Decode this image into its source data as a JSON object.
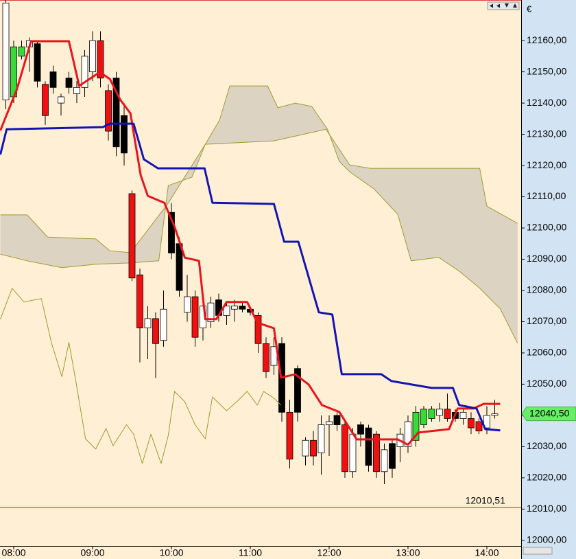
{
  "chart_data": {
    "type": "candlestick",
    "currency": "€",
    "xlim": [
      7.826,
      14.435
    ],
    "ylim": [
      11998.2,
      12173.0
    ],
    "xticks": [
      {
        "value": 8,
        "label": "08:00"
      },
      {
        "value": 9,
        "label": "09:00"
      },
      {
        "value": 10,
        "label": "10:00"
      },
      {
        "value": 11,
        "label": "11:00"
      },
      {
        "value": 12,
        "label": "12:00"
      },
      {
        "value": 13,
        "label": "13:00"
      },
      {
        "value": 14,
        "label": "14:00"
      }
    ],
    "yticks": [
      {
        "value": 12000,
        "label": "12000,00"
      },
      {
        "value": 12010,
        "label": "12010,00"
      },
      {
        "value": 12020,
        "label": "12020,00"
      },
      {
        "value": 12030,
        "label": "12030,00"
      },
      {
        "value": 12040,
        "label": "12040,00"
      },
      {
        "value": 12050,
        "label": "12050,00"
      },
      {
        "value": 12060,
        "label": "12060,00"
      },
      {
        "value": 12070,
        "label": "12070,00"
      },
      {
        "value": 12080,
        "label": "12080,00"
      },
      {
        "value": 12090,
        "label": "12090,00"
      },
      {
        "value": 12100,
        "label": "12100,00"
      },
      {
        "value": 12110,
        "label": "12110,00"
      },
      {
        "value": 12120,
        "label": "12120,00"
      },
      {
        "value": 12130,
        "label": "12130,00"
      },
      {
        "value": 12140,
        "label": "12140,00"
      },
      {
        "value": 12150,
        "label": "12150,00"
      },
      {
        "value": 12160,
        "label": "12160,00"
      }
    ],
    "candles": {
      "x": [
        7.9,
        8.0,
        8.1,
        8.2,
        8.3,
        8.4,
        8.5,
        8.6,
        8.7,
        8.8,
        8.9,
        9.0,
        9.1,
        9.2,
        9.3,
        9.4,
        9.5,
        9.6,
        9.7,
        9.8,
        9.9,
        10.0,
        10.1,
        10.2,
        10.3,
        10.4,
        10.5,
        10.6,
        10.7,
        10.8,
        10.9,
        11.0,
        11.1,
        11.2,
        11.3,
        11.4,
        11.5,
        11.6,
        11.7,
        11.8,
        11.9,
        12.0,
        12.1,
        12.2,
        12.3,
        12.4,
        12.5,
        12.6,
        12.7,
        12.8,
        12.9,
        13.0,
        13.1,
        13.2,
        13.3,
        13.4,
        13.5,
        13.6,
        13.7,
        13.8,
        13.9,
        14.0,
        14.1
      ],
      "open": [
        12141,
        12142,
        12155,
        12158,
        12159,
        12146,
        12150,
        12140,
        12148,
        12143,
        12145,
        12150,
        12160,
        12144,
        12148,
        12136,
        12111,
        12085,
        12068,
        12071,
        12064,
        12105,
        12095,
        12073,
        12078,
        12068,
        12070,
        12077,
        12072,
        12074,
        12075,
        12074,
        12072,
        12063,
        12056,
        12063,
        12041,
        12055,
        12027,
        12032,
        12028,
        12037,
        12040,
        12037,
        12022,
        12037,
        12036,
        12034,
        12022,
        12031,
        12030,
        12030,
        12032,
        12037,
        12039,
        12040,
        12042,
        12041,
        12039,
        12039,
        12038,
        12036,
        12040
      ],
      "high": [
        12173,
        12160,
        12160,
        12161,
        12160,
        12147,
        12152,
        12143,
        12150,
        12147,
        12157,
        12163,
        12163,
        12146,
        12150,
        12140,
        12112,
        12087,
        12075,
        12073,
        12080,
        12108,
        12097,
        12085,
        12080,
        12076,
        12078,
        12079,
        12076,
        12077,
        12076,
        12075,
        12073,
        12065,
        12065,
        12065,
        12045,
        12056,
        12033,
        12035,
        12040,
        12040,
        12041,
        12038,
        12036,
        12038,
        12037,
        12035,
        12031,
        12032,
        12036,
        12040,
        12043,
        12043,
        12043,
        12044,
        12047,
        12042,
        12042,
        12041,
        12039,
        12043,
        12045
      ],
      "low": [
        12138,
        12140,
        12154,
        12150,
        12145,
        12133,
        12143,
        12136,
        12143,
        12140,
        12142,
        12147,
        12145,
        12128,
        12123,
        12120,
        12083,
        12057,
        12058,
        12052,
        12062,
        12090,
        12078,
        12070,
        12062,
        12064,
        12068,
        12070,
        12069,
        12070,
        12073,
        12072,
        12060,
        12052,
        12053,
        12038,
        12023,
        12038,
        12024,
        12024,
        12021,
        12027,
        12035,
        12020,
        12020,
        12030,
        12022,
        12020,
        12018,
        12020,
        12025,
        12028,
        12030,
        12036,
        12038,
        12038,
        12038,
        12038,
        12037,
        12034,
        12034,
        12034,
        12039
      ],
      "close": [
        12172,
        12158,
        12158,
        12160,
        12147,
        12136,
        12145,
        12142,
        12145,
        12145,
        12155,
        12160,
        12148,
        12131,
        12126,
        12124,
        12084,
        12068,
        12071,
        12063,
        12074,
        12092,
        12080,
        12078,
        12065,
        12075,
        12076,
        12072,
        12075,
        12075,
        12074,
        12073,
        12063,
        12054,
        12062,
        12041,
        12026,
        12041,
        12032,
        12027,
        12037,
        12038,
        12037,
        12022,
        12034,
        12034,
        12024,
        12022,
        12029,
        12023,
        12034,
        12038,
        12041,
        12042,
        12042,
        12042,
        12039,
        12039,
        12041,
        12036,
        12035,
        12040,
        12040.5
      ],
      "styles": [
        "white",
        "green",
        "green",
        "white",
        "black",
        "red",
        "black",
        "white",
        "black",
        "white",
        "white",
        "white",
        "red",
        "red",
        "black",
        "black",
        "red",
        "red",
        "white",
        "red",
        "white",
        "black",
        "black",
        "white",
        "red",
        "white",
        "white",
        "black",
        "white",
        "white",
        "black",
        "black",
        "red",
        "red",
        "white",
        "black",
        "red",
        "black",
        "white",
        "red",
        "white",
        "white",
        "black",
        "red",
        "white",
        "black",
        "black",
        "red",
        "white",
        "black",
        "white",
        "white",
        "green",
        "green",
        "green",
        "white",
        "red",
        "black",
        "white",
        "red",
        "red",
        "white",
        "white"
      ]
    },
    "lines": [
      {
        "color": "#e8141b",
        "width": 3,
        "x": [
          7.83,
          8.04,
          8.22,
          8.7,
          8.83,
          9.09,
          9.22,
          9.35,
          9.48,
          9.61,
          9.7,
          9.91,
          10.04,
          10.17,
          10.35,
          10.43,
          10.57,
          10.7,
          10.96,
          11.09,
          11.3,
          11.39,
          11.57,
          11.74,
          11.91,
          12.13,
          12.35,
          12.87,
          13.0,
          13.13,
          13.52,
          13.63,
          13.83,
          13.96,
          14.17
        ],
        "values": [
          12131.2,
          12144.4,
          12159.8,
          12159.8,
          12145.5,
          12149.9,
          12147.7,
          12141.1,
          12136.7,
          12116.9,
          12110.3,
          12108.1,
          12100.4,
          12090.5,
          12089.5,
          12070.8,
          12070.8,
          12076.3,
          12076.3,
          12069.7,
          12067.9,
          12052.1,
          12053.2,
          12049.9,
          12043.3,
          12041.1,
          12032.3,
          12032.3,
          12030.6,
          12034.5,
          12035.6,
          12042.2,
          12042.2,
          12043.7,
          12043.7
        ]
      },
      {
        "color": "#1414b4",
        "width": 3,
        "x": [
          7.83,
          7.91,
          9.13,
          9.22,
          9.52,
          9.65,
          9.83,
          10.42,
          10.52,
          11.3,
          11.43,
          11.61,
          11.87,
          12.04,
          12.16,
          12.66,
          12.79,
          13.3,
          13.57,
          13.65,
          13.87,
          13.98,
          14.17
        ],
        "values": [
          12123.5,
          12131.6,
          12132.3,
          12133.4,
          12133.4,
          12122.0,
          12119.1,
          12119.1,
          12108.1,
          12107.7,
          12095.6,
          12095.6,
          12073.0,
          12072.3,
          12053.2,
          12053.2,
          12051.0,
          12048.8,
          12048.8,
          12043.3,
          12042.2,
          12035.6,
          12035.2
        ]
      },
      {
        "color": "#9c9c30",
        "width": 1,
        "x": [
          7.83,
          7.98,
          8.13,
          8.35,
          8.48,
          8.61,
          8.7,
          8.78,
          8.91,
          9.04,
          9.17,
          9.26,
          9.43,
          9.52,
          9.63,
          9.74,
          9.87,
          9.96,
          10.04,
          10.17,
          10.3,
          10.43,
          10.52,
          10.7,
          10.83,
          10.96,
          11.09,
          11.17,
          11.3,
          11.39
        ],
        "values": [
          12070.8,
          12080.7,
          12076.3,
          12077.4,
          12063.1,
          12052.4,
          12063.4,
          12052.1,
          12032.5,
          12029.2,
          12035.8,
          12030.3,
          12037.0,
          12034.0,
          12024.6,
          12034.0,
          12024.6,
          12033.6,
          12047.7,
          12044.4,
          12037.0,
          12032.5,
          12045.9,
          12041.5,
          12044.4,
          12047.7,
          12043.3,
          12047.7,
          12045.5,
          12043.3
        ]
      }
    ],
    "cloud": {
      "color": "#dcd3c2",
      "edge": "#9c9c30",
      "span_a": {
        "x": [
          7.83,
          8.17,
          8.61,
          9.04,
          9.48,
          9.84,
          9.96,
          10.26,
          10.43,
          10.61,
          10.74,
          11.22,
          11.35,
          11.57,
          11.78,
          11.98,
          12.13,
          12.26,
          12.57,
          12.87,
          13.04,
          13.39,
          13.65,
          13.91,
          14.17,
          14.39
        ],
        "values": [
          12091.6,
          12089.5,
          12087.3,
          12088.4,
          12088.8,
          12089.5,
          12113.6,
          12116.3,
          12126.8,
          12134.5,
          12145.5,
          12145.5,
          12138.5,
          12140.0,
          12138.9,
          12131.6,
          12121.3,
          12118.0,
          12112.5,
          12104.4,
          12089.5,
          12090.6,
          12086.2,
          12080.7,
          12074.1,
          12063.1
        ]
      },
      "span_b": {
        "x": [
          7.83,
          8.17,
          8.43,
          9.04,
          9.22,
          9.48,
          9.84,
          9.96,
          10.43,
          11.3,
          11.96,
          12.26,
          12.52,
          13.91,
          14.0,
          14.39
        ],
        "values": [
          12104.2,
          12104.2,
          12097.1,
          12096.5,
          12092.7,
          12092.1,
          12104.0,
          12108.0,
          12126.8,
          12127.9,
          12131.6,
          12120.2,
          12119.1,
          12119.1,
          12107.0,
          12101.5
        ]
      }
    },
    "last_price": {
      "value": 12040.5,
      "label": "12040,50",
      "color": "#66ee66"
    },
    "level": {
      "value": 12010.51,
      "label": "12010,51",
      "color": "#e01010"
    }
  }
}
